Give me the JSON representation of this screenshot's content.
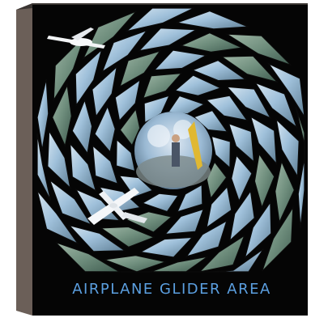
{
  "artwork": {
    "caption": "AIRPLANE GLIDER AREA",
    "colors": {
      "canvas": "#050505",
      "side": "#6b5f58",
      "top_edge": "#3a3532",
      "sky": "#8fb6d6",
      "sky_light": "#c7dcea",
      "mountain": "#7f8a88",
      "caption": "#5b9fe0"
    },
    "elements": [
      "spiral-photo-tiles",
      "center-disc-figure",
      "glider-plane-top-left",
      "airplane-bottom-left"
    ]
  }
}
